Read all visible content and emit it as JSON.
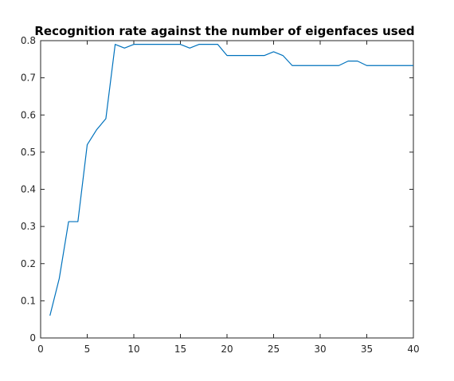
{
  "chart_data": {
    "type": "line",
    "title": "Recognition rate against the number of eigenfaces used",
    "xlabel": "",
    "ylabel": "",
    "xlim": [
      0,
      40
    ],
    "ylim": [
      0,
      0.8
    ],
    "xticks": [
      0,
      5,
      10,
      15,
      20,
      25,
      30,
      35,
      40
    ],
    "yticks": [
      0,
      0.1,
      0.2,
      0.3,
      0.4,
      0.5,
      0.6,
      0.7,
      0.8
    ],
    "grid": false,
    "series": [
      {
        "name": "",
        "color": "#0072BD",
        "x": [
          1,
          2,
          3,
          4,
          5,
          6,
          7,
          8,
          9,
          10,
          11,
          12,
          13,
          14,
          15,
          16,
          17,
          18,
          19,
          20,
          21,
          22,
          23,
          24,
          25,
          26,
          27,
          28,
          29,
          30,
          31,
          32,
          33,
          34,
          35,
          36,
          37,
          38,
          39,
          40
        ],
        "y": [
          0.06,
          0.16,
          0.313,
          0.313,
          0.52,
          0.56,
          0.59,
          0.79,
          0.78,
          0.79,
          0.79,
          0.79,
          0.79,
          0.79,
          0.79,
          0.78,
          0.79,
          0.79,
          0.79,
          0.76,
          0.76,
          0.76,
          0.76,
          0.76,
          0.77,
          0.76,
          0.733,
          0.733,
          0.733,
          0.733,
          0.733,
          0.733,
          0.745,
          0.745,
          0.733,
          0.733,
          0.733,
          0.733,
          0.733,
          0.733
        ]
      }
    ]
  }
}
